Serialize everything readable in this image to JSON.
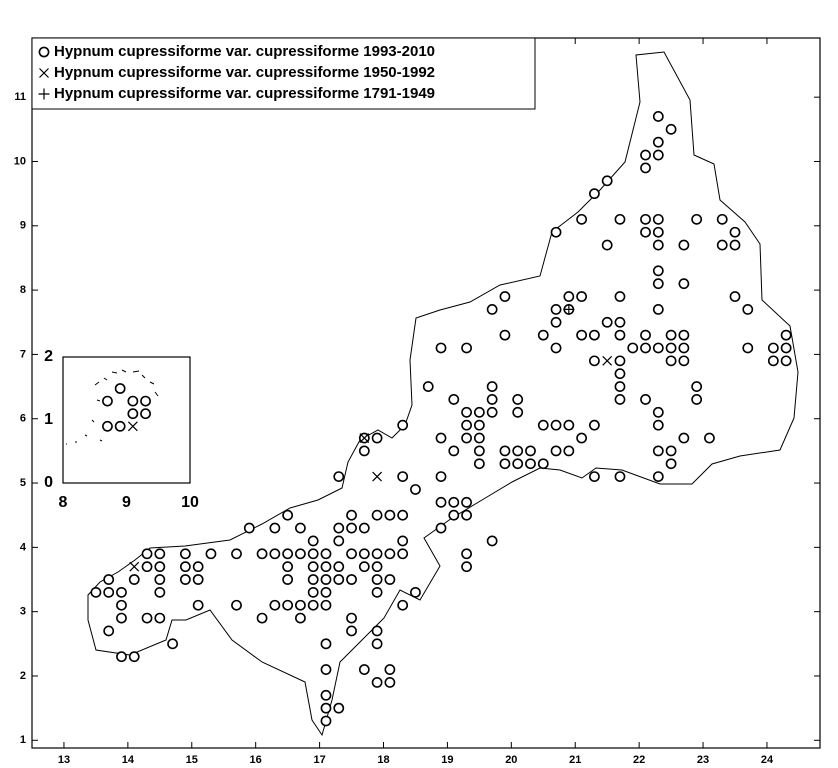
{
  "chart_data": [
    {
      "type": "scatter",
      "legend": "upper left",
      "xlim": [
        12.5,
        24.83
      ],
      "ylim": [
        0.88,
        11.92
      ],
      "xticks": [
        13,
        14,
        15,
        16,
        17,
        18,
        19,
        20,
        21,
        22,
        23,
        24
      ],
      "yticks": [
        1,
        2,
        3,
        4,
        5,
        6,
        7,
        8,
        9,
        10,
        11
      ],
      "series": [
        {
          "name": "Hypnum cupressiforme var. cupressiforme 1993-2010",
          "marker": "o",
          "color": "#000000",
          "x": [
            22.3,
            22.5,
            22.3,
            22.1,
            22.3,
            22.1,
            21.5,
            21.3,
            21.1,
            20.7,
            21.7,
            22.1,
            22.3,
            22.1,
            22.3,
            21.5,
            22.7,
            22.3,
            22.9,
            23.3,
            23.5,
            23.3,
            23.5,
            22.3,
            22.7,
            22.3,
            19.9,
            20.9,
            21.1,
            21.7,
            22.3,
            20.9,
            20.7,
            19.7,
            21.5,
            21.7,
            20.7,
            22.5,
            22.7,
            22.1,
            21.7,
            21.3,
            21.1,
            20.5,
            19.9,
            24.3,
            23.7,
            23.5,
            19.3,
            20.7,
            21.9,
            22.1,
            22.3,
            22.5,
            22.7,
            23.7,
            24.1,
            24.3,
            18.9,
            21.3,
            21.7,
            22.5,
            22.7,
            24.1,
            24.3,
            19.7,
            21.7,
            21.7,
            22.9,
            22.9,
            22.1,
            22.3,
            21.7,
            19.7,
            18.7,
            19.1,
            20.1,
            20.1,
            19.5,
            19.3,
            19.7,
            19.3,
            20.5,
            20.7,
            20.9,
            21.3,
            22.3,
            18.3,
            19.5,
            19.3,
            19.5,
            18.9,
            22.7,
            23.1,
            17.7,
            17.9,
            21.1,
            20.1,
            20.3,
            19.9,
            20.9,
            20.7,
            19.5,
            19.1,
            22.3,
            22.5,
            17.7,
            19.9,
            20.1,
            20.3,
            20.5,
            19.5,
            22.5,
            17.3,
            18.3,
            18.9,
            21.3,
            21.7,
            22.3,
            18.5,
            18.9,
            19.1,
            19.3,
            17.5,
            19.1,
            19.3,
            17.9,
            18.1,
            18.3,
            16.5,
            18.9,
            17.3,
            17.5,
            17.7,
            15.9,
            16.3,
            16.7,
            18.3,
            19.7,
            17.3,
            16.9,
            18.3,
            18.1,
            17.9,
            17.7,
            17.5,
            17.1,
            16.9,
            16.7,
            16.5,
            16.3,
            16.1,
            15.7,
            15.3,
            14.9,
            14.5,
            14.3,
            19.3,
            19.3,
            17.9,
            17.7,
            17.3,
            17.1,
            16.9,
            16.5,
            14.9,
            15.1,
            14.5,
            14.3,
            17.9,
            17.5,
            17.3,
            17.1,
            16.9,
            16.5,
            15.1,
            14.9,
            14.5,
            14.1,
            13.7,
            18.1,
            13.5,
            13.7,
            13.9,
            17.9,
            17.1,
            16.9,
            14.5,
            18.5,
            15.7,
            15.1,
            13.9,
            16.3,
            16.5,
            16.7,
            16.9,
            17.1,
            18.3,
            13.9,
            14.3,
            14.5,
            16.1,
            16.7,
            17.5,
            17.5,
            13.7,
            17.9,
            17.1,
            17.9,
            14.7,
            13.9,
            14.1,
            17.1,
            18.1,
            17.7,
            17.9,
            18.1,
            17.1,
            17.1,
            17.3,
            17.1
          ],
          "values": [
            10.7,
            10.5,
            10.3,
            10.1,
            10.1,
            9.9,
            9.7,
            9.5,
            9.1,
            8.9,
            9.1,
            9.1,
            9.1,
            8.9,
            8.9,
            8.7,
            8.7,
            8.7,
            9.1,
            9.1,
            8.9,
            8.7,
            8.7,
            8.3,
            8.1,
            8.1,
            7.9,
            7.9,
            7.9,
            7.9,
            7.7,
            7.7,
            7.7,
            7.7,
            7.5,
            7.5,
            7.5,
            7.3,
            7.3,
            7.3,
            7.3,
            7.3,
            7.3,
            7.3,
            7.3,
            7.3,
            7.7,
            7.9,
            7.1,
            7.1,
            7.1,
            7.1,
            7.1,
            7.1,
            7.1,
            7.1,
            7.1,
            7.1,
            7.1,
            6.9,
            6.9,
            6.9,
            6.9,
            6.9,
            6.9,
            6.5,
            6.7,
            6.5,
            6.5,
            6.3,
            6.3,
            6.1,
            6.3,
            6.3,
            6.5,
            6.3,
            6.3,
            6.1,
            6.1,
            6.1,
            6.1,
            5.9,
            5.9,
            5.9,
            5.9,
            5.9,
            5.9,
            5.9,
            5.9,
            5.7,
            5.7,
            5.7,
            5.7,
            5.7,
            5.7,
            5.7,
            5.7,
            5.5,
            5.5,
            5.5,
            5.5,
            5.5,
            5.5,
            5.5,
            5.5,
            5.5,
            5.5,
            5.3,
            5.3,
            5.3,
            5.3,
            5.3,
            5.3,
            5.1,
            5.1,
            5.1,
            5.1,
            5.1,
            5.1,
            4.9,
            4.7,
            4.7,
            4.7,
            4.5,
            4.5,
            4.5,
            4.5,
            4.5,
            4.5,
            4.5,
            4.3,
            4.3,
            4.3,
            4.3,
            4.3,
            4.3,
            4.3,
            4.1,
            4.1,
            4.1,
            4.1,
            3.9,
            3.9,
            3.9,
            3.9,
            3.9,
            3.9,
            3.9,
            3.9,
            3.9,
            3.9,
            3.9,
            3.9,
            3.9,
            3.9,
            3.9,
            3.9,
            3.9,
            3.7,
            3.7,
            3.7,
            3.7,
            3.7,
            3.7,
            3.7,
            3.7,
            3.7,
            3.7,
            3.7,
            3.5,
            3.5,
            3.5,
            3.5,
            3.5,
            3.5,
            3.5,
            3.5,
            3.5,
            3.5,
            3.5,
            3.5,
            3.3,
            3.3,
            3.3,
            3.3,
            3.3,
            3.3,
            3.3,
            3.3,
            3.1,
            3.1,
            3.1,
            3.1,
            3.1,
            3.1,
            3.1,
            3.1,
            3.1,
            2.9,
            2.9,
            2.9,
            2.9,
            2.9,
            2.9,
            2.7,
            2.7,
            2.7,
            2.5,
            2.5,
            2.5,
            2.3,
            2.3,
            2.1,
            2.1,
            2.1,
            1.9,
            1.9,
            1.7,
            1.5,
            1.5,
            1.3
          ]
        },
        {
          "name": "Hypnum cupressiforme var. cupressiforme 1950-1992",
          "marker": "x",
          "color": "#000000",
          "x": [
            14.1,
            17.9,
            21.5,
            17.7
          ],
          "values": [
            3.7,
            5.1,
            6.9,
            5.7
          ]
        },
        {
          "name": "Hypnum cupressiforme var. cupressiforme 1791-1949",
          "marker": "+",
          "color": "#000000",
          "x": [
            20.9
          ],
          "values": [
            7.7
          ]
        }
      ]
    },
    {
      "type": "scatter",
      "xlim": [
        8,
        10
      ],
      "ylim": [
        0,
        2
      ],
      "xticks": [
        8,
        9,
        10
      ],
      "yticks": [
        0,
        1,
        2
      ],
      "series": [
        {
          "marker": "o",
          "color": "#000000",
          "x": [
            8.9,
            8.7,
            9.1,
            9.3,
            9.1,
            9.3,
            8.7,
            8.9
          ],
          "values": [
            1.5,
            1.3,
            1.3,
            1.3,
            1.1,
            1.1,
            0.9,
            0.9
          ]
        },
        {
          "marker": "x",
          "color": "#000000",
          "x": [
            9.1
          ],
          "values": [
            0.9
          ]
        }
      ]
    }
  ]
}
